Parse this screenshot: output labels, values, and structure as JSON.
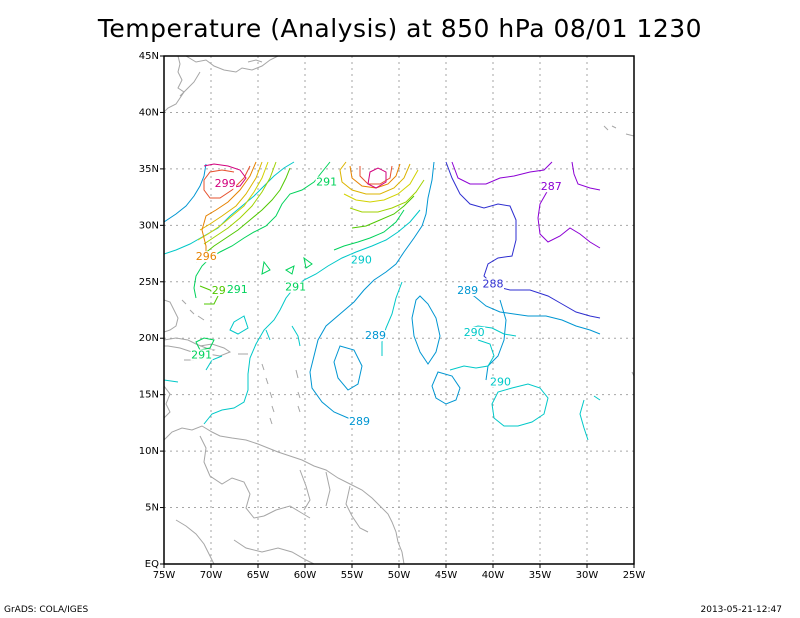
{
  "title": "Temperature (Analysis) at 850 hPa 08/01 1230",
  "footer": {
    "left": "GrADS: COLA/IGES",
    "right": "2013-05-21-12:47"
  },
  "map": {
    "lon_range": [
      -75,
      -25
    ],
    "lat_range": [
      0,
      45
    ],
    "x_ticks": [
      {
        "lon": -75,
        "label": "75W"
      },
      {
        "lon": -70,
        "label": "70W"
      },
      {
        "lon": -65,
        "label": "65W"
      },
      {
        "lon": -60,
        "label": "60W"
      },
      {
        "lon": -55,
        "label": "55W"
      },
      {
        "lon": -50,
        "label": "50W"
      },
      {
        "lon": -45,
        "label": "45W"
      },
      {
        "lon": -40,
        "label": "40W"
      },
      {
        "lon": -35,
        "label": "35W"
      },
      {
        "lon": -30,
        "label": "30W"
      },
      {
        "lon": -25,
        "label": "25W"
      }
    ],
    "y_ticks": [
      {
        "lat": 0,
        "label": "EQ"
      },
      {
        "lat": 5,
        "label": "5N"
      },
      {
        "lat": 10,
        "label": "10N"
      },
      {
        "lat": 15,
        "label": "15N"
      },
      {
        "lat": 20,
        "label": "20N"
      },
      {
        "lat": 25,
        "label": "25N"
      },
      {
        "lat": 30,
        "label": "30N"
      },
      {
        "lat": 35,
        "label": "35N"
      },
      {
        "lat": 40,
        "label": "40N"
      },
      {
        "lat": 45,
        "label": "45N"
      }
    ],
    "grid": true,
    "colors": {
      "coast": "#a6a6a6",
      "grid": "#a6a6a6",
      "c287": "#8c00d4",
      "c288": "#2e2ed0",
      "c289": "#0096d2",
      "c290": "#00c8c8",
      "c291": "#00d25a",
      "c292": "#50c800",
      "warm1": "#a0d200",
      "warm2": "#d2d200",
      "warm3": "#dcb400",
      "warm4": "#e68200",
      "warm5": "#e6502d",
      "warm6": "#d2007d"
    },
    "contour_labels": [
      {
        "text": "299",
        "lon": -68.5,
        "lat": 33.5,
        "color": "#d2007d"
      },
      {
        "text": "296",
        "lon": -70.5,
        "lat": 27.0,
        "color": "#e68200"
      },
      {
        "text": "292",
        "lon": -68.8,
        "lat": 24.0,
        "color": "#50c800"
      },
      {
        "text": "291",
        "lon": -67.2,
        "lat": 24.1,
        "color": "#00d25a"
      },
      {
        "text": "291",
        "lon": -61.0,
        "lat": 24.3,
        "color": "#00d25a"
      },
      {
        "text": "291",
        "lon": -57.7,
        "lat": 33.6,
        "color": "#00d25a"
      },
      {
        "text": "290",
        "lon": -54.0,
        "lat": 26.7,
        "color": "#00c8c8"
      },
      {
        "text": "289",
        "lon": -52.5,
        "lat": 20.0,
        "color": "#0096d2"
      },
      {
        "text": "289",
        "lon": -42.7,
        "lat": 24.0,
        "color": "#0096d2"
      },
      {
        "text": "288",
        "lon": -40.0,
        "lat": 24.6,
        "color": "#2e2ed0"
      },
      {
        "text": "290",
        "lon": -42.0,
        "lat": 20.3,
        "color": "#00c8c8"
      },
      {
        "text": "290",
        "lon": -39.2,
        "lat": 15.9,
        "color": "#00c8c8"
      },
      {
        "text": "287",
        "lon": -33.8,
        "lat": 33.2,
        "color": "#8c00d4"
      },
      {
        "text": "289",
        "lon": -54.2,
        "lat": 12.4,
        "color": "#0096d2"
      },
      {
        "text": "291",
        "lon": -71.0,
        "lat": 18.3,
        "color": "#00d25a"
      }
    ]
  }
}
